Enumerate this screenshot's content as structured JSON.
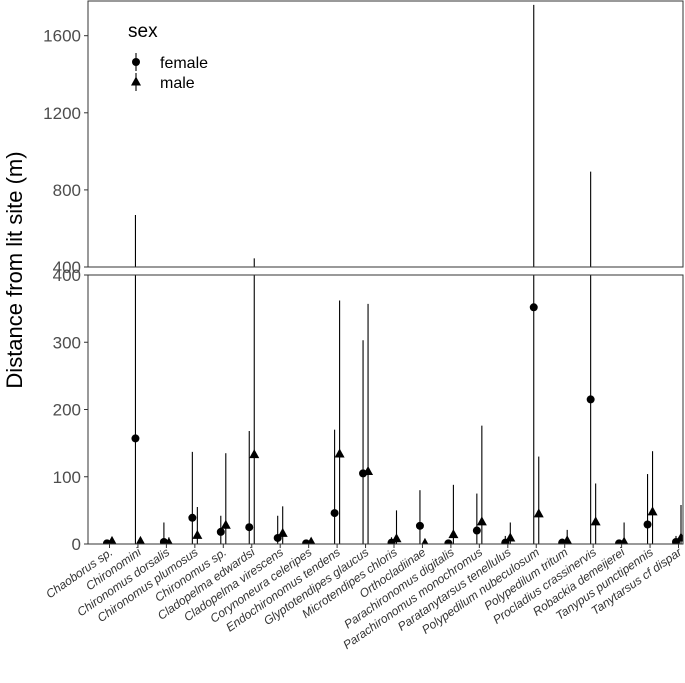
{
  "chart_data": {
    "type": "scatter",
    "ylabel": "Distance from lit site (m)",
    "categories": [
      "Chaoborus sp.",
      "Chironomini",
      "Chironomus dorsalis",
      "Chironomus plumosus",
      "Chironomus sp.",
      "Cladopelma edwardsi",
      "Cladopelma virescens",
      "Corynoneura celeripes",
      "Endochironomus tendens",
      "Glyptotendipes glaucus",
      "Microtendipes chloris",
      "Orthocladiinae",
      "Parachironomus digitalis",
      "Parachironomus monochromus",
      "Paratanytarsus tenellulus",
      "Polypedilum nubeculosum",
      "Polypedilum tritum",
      "Procladius crassinervis",
      "Robackia demeijerei",
      "Tanypus punctipennis",
      "Tanytarsus cf dispar"
    ],
    "panels": [
      {
        "ylim": [
          400,
          1780
        ],
        "yticks": [
          400,
          800,
          1200,
          1600
        ]
      },
      {
        "ylim": [
          0,
          400
        ],
        "yticks": [
          0,
          100,
          200,
          300,
          400
        ]
      }
    ],
    "legend": {
      "title": "sex",
      "position": "top-left",
      "entries": [
        {
          "label": "female",
          "marker": "circle"
        },
        {
          "label": "male",
          "marker": "triangle"
        }
      ]
    },
    "series": [
      {
        "name": "female",
        "marker": "circle",
        "values": [
          1,
          157,
          3,
          39,
          18,
          25,
          9,
          1,
          46,
          105,
          2,
          27,
          1,
          20,
          2,
          352,
          2,
          215,
          1,
          29,
          3
        ],
        "upper": [
          6,
          670,
          32,
          137,
          42,
          168,
          42,
          6,
          170,
          303,
          10,
          80,
          6,
          75,
          12,
          1760,
          8,
          895,
          6,
          104,
          12
        ],
        "lower": [
          0,
          0,
          0,
          0,
          0,
          0,
          0,
          0,
          0,
          0,
          0,
          0,
          0,
          0,
          0,
          0,
          0,
          0,
          0,
          0,
          0
        ]
      },
      {
        "name": "male",
        "marker": "triangle",
        "values": [
          4,
          4,
          2,
          13,
          28,
          133,
          16,
          3,
          134,
          108,
          8,
          1,
          14,
          33,
          9,
          45,
          5,
          33,
          3,
          48,
          9
        ],
        "upper": [
          8,
          8,
          10,
          55,
          135,
          445,
          56,
          6,
          362,
          357,
          50,
          8,
          88,
          176,
          32,
          130,
          21,
          90,
          32,
          138,
          58
        ],
        "lower": [
          0,
          0,
          0,
          0,
          0,
          0,
          0,
          0,
          0,
          0,
          0,
          0,
          0,
          0,
          0,
          0,
          0,
          0,
          0,
          0,
          0
        ]
      }
    ],
    "grid": false
  }
}
